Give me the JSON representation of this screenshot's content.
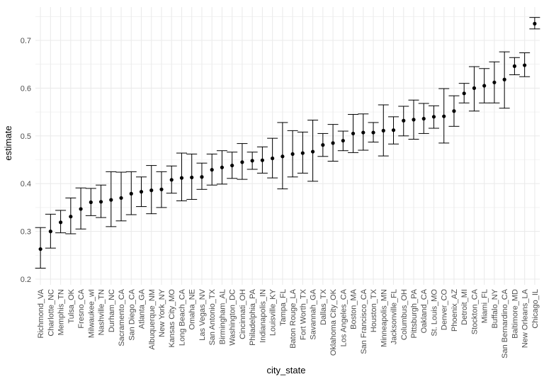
{
  "chart_data": {
    "type": "scatter",
    "error_bars": true,
    "xlabel": "city_state",
    "ylabel": "estimate",
    "ylim": [
      0.2,
      0.75
    ],
    "y_ticks": [
      0.2,
      0.3,
      0.4,
      0.5,
      0.6,
      0.7
    ],
    "y_tick_labels": [
      "0.2",
      "0.3",
      "0.4",
      "0.5",
      "0.6",
      "0.7"
    ],
    "grid": true,
    "theme": "minimal",
    "point_color": "#000000",
    "grid_color": "#ebebeb",
    "categories": [
      "Richmond_VA",
      "Charlotte_NC",
      "Memphis_TN",
      "Tulsa_OK",
      "Fresno_CA",
      "Milwaukee_wI",
      "Nashville_TN",
      "Durham_NC",
      "Sacramento_CA",
      "San Diego_CA",
      "Atlanta_GA",
      "Albuquerque_NM",
      "New York_NY",
      "Kansas City_MO",
      "Long Beach_CA",
      "Omaha_NE",
      "Las Vegas_NV",
      "San Antonio_TX",
      "Birmingham_AL",
      "Washington_DC",
      "Cincinnati_OH",
      "Philadelphia_PA",
      "Indianapolis_IN",
      "Louisville_KY",
      "Tampa_FL",
      "Baton Rouge_LA",
      "Fort Worth_TX",
      "Savannah_GA",
      "Dallas_TX",
      "Oklahoma City_OK",
      "Los Angeles_CA",
      "Boston_MA",
      "San Francisco_CA",
      "Houston_TX",
      "Minneapolis_MN",
      "Jacksonville_FL",
      "Columbus_OH",
      "Pittsburgh_PA",
      "Oakland_CA",
      "St. Louis_MO",
      "Denver_CO",
      "Phoenix_AZ",
      "Detroit_MI",
      "Stockton_CA",
      "Miami_FL",
      "Buffalo_NY",
      "San Bernardino_CA",
      "Baltimore_MD",
      "New Orleans_LA",
      "Chicago_IL"
    ],
    "estimate": [
      0.263,
      0.3,
      0.319,
      0.331,
      0.347,
      0.361,
      0.362,
      0.366,
      0.37,
      0.379,
      0.383,
      0.386,
      0.388,
      0.408,
      0.412,
      0.413,
      0.414,
      0.429,
      0.434,
      0.438,
      0.445,
      0.448,
      0.449,
      0.453,
      0.457,
      0.462,
      0.464,
      0.467,
      0.481,
      0.485,
      0.49,
      0.505,
      0.507,
      0.507,
      0.511,
      0.512,
      0.532,
      0.534,
      0.536,
      0.54,
      0.541,
      0.552,
      0.589,
      0.6,
      0.605,
      0.612,
      0.618,
      0.646,
      0.648,
      0.735
    ],
    "conf_low": [
      0.223,
      0.265,
      0.297,
      0.295,
      0.305,
      0.333,
      0.329,
      0.31,
      0.322,
      0.335,
      0.352,
      0.337,
      0.35,
      0.38,
      0.364,
      0.367,
      0.388,
      0.397,
      0.399,
      0.411,
      0.409,
      0.43,
      0.422,
      0.412,
      0.389,
      0.414,
      0.422,
      0.405,
      0.457,
      0.447,
      0.469,
      0.465,
      0.47,
      0.487,
      0.458,
      0.483,
      0.5,
      0.493,
      0.505,
      0.516,
      0.485,
      0.52,
      0.569,
      0.552,
      0.569,
      0.569,
      0.558,
      0.628,
      0.624,
      0.724
    ],
    "conf_high": [
      0.308,
      0.336,
      0.344,
      0.37,
      0.391,
      0.39,
      0.397,
      0.425,
      0.424,
      0.425,
      0.414,
      0.438,
      0.425,
      0.437,
      0.464,
      0.462,
      0.443,
      0.462,
      0.469,
      0.466,
      0.484,
      0.466,
      0.477,
      0.495,
      0.528,
      0.511,
      0.508,
      0.533,
      0.505,
      0.524,
      0.51,
      0.545,
      0.546,
      0.528,
      0.565,
      0.54,
      0.562,
      0.575,
      0.568,
      0.563,
      0.599,
      0.584,
      0.61,
      0.645,
      0.641,
      0.655,
      0.676,
      0.664,
      0.674,
      0.748
    ]
  }
}
